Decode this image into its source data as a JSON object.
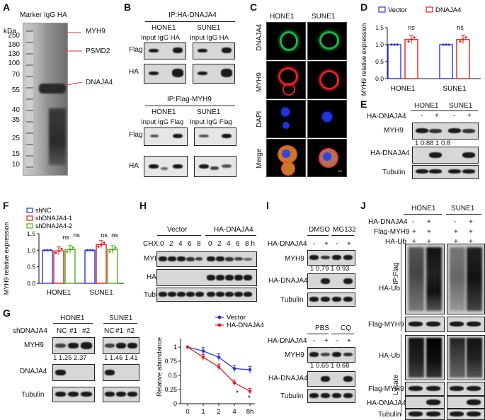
{
  "panels": {
    "A": "A",
    "B": "B",
    "C": "C",
    "D": "D",
    "E": "E",
    "F": "F",
    "G": "G",
    "H": "H",
    "I": "I",
    "J": "J"
  },
  "A": {
    "header": [
      "Marker",
      "IgG",
      "HA"
    ],
    "kda_label": "kDa",
    "kda": [
      "250",
      "180",
      "130",
      "100",
      "70",
      "55",
      "40",
      "35",
      "25",
      "15",
      "10"
    ],
    "annotations": [
      "MYH9",
      "PSMD2",
      "DNAJA4"
    ]
  },
  "B": {
    "top_title": "IP:HA-DNAJA4",
    "cells": [
      "HONE1",
      "SUNE1"
    ],
    "top_lanes": "Input IgG HA",
    "top_rows": [
      "Flag",
      "HA"
    ],
    "bottom_title": "IP:Flag-MYH9",
    "bottom_lanes": "Input IgG Flag",
    "bottom_rows": [
      "Flag",
      "HA"
    ]
  },
  "C": {
    "cols": [
      "HONE1",
      "SUNE1"
    ],
    "rows": [
      "DNAJA4",
      "MYH9",
      "DAPI",
      "Merge"
    ]
  },
  "D": {
    "legend": [
      "Vector",
      "DNAJA4"
    ],
    "ylabel": "MYH9 relative expression",
    "yticks": [
      "0.0",
      "0.5",
      "1.0",
      "1.5"
    ],
    "groups": [
      "HONE1",
      "SUNE1"
    ],
    "ns": [
      "ns",
      "ns"
    ]
  },
  "E": {
    "cells": [
      "HONE1",
      "SUNE1"
    ],
    "treat_label": "HA-DNAJA4",
    "signs": [
      "-",
      "+",
      "-",
      "+"
    ],
    "rows": [
      "MYH9",
      "HA-DNAJA4",
      "Tubulin"
    ],
    "quant": "1  0.88  1  0.8"
  },
  "F": {
    "legend": [
      "shNC",
      "shDNAJA4-1",
      "shDNAJA4-2"
    ],
    "ylabel": "MYH9 relative expression",
    "yticks": [
      "0.0",
      "0.5",
      "1.0",
      "1.5"
    ],
    "groups": [
      "HONE1",
      "SUNE1"
    ],
    "ns": [
      "ns",
      "ns",
      "ns",
      "ns"
    ]
  },
  "G": {
    "cells": [
      "HONE1",
      "SUNE1"
    ],
    "treat_label": "shDNAJA4",
    "lanes": [
      "NC",
      "#1",
      "#2",
      "NC",
      "#1",
      "#2"
    ],
    "rows": [
      "MYH9",
      "DNAJA4",
      "Tubulin"
    ],
    "quant_hone": "1 1.25 2.37",
    "quant_sune": "1 1.46 1.41"
  },
  "G_chart": {
    "ylabel": "Relative abundance",
    "yticks": [
      "0",
      "0.25",
      "0.5",
      "0.75",
      "1"
    ],
    "xticks": [
      "0",
      "1",
      "2",
      "4",
      "8h"
    ],
    "stars": [
      "*",
      "*"
    ]
  },
  "H": {
    "groups": [
      "Vector",
      "HA-DNAJA4"
    ],
    "chx_label": "CHX:",
    "lanes": [
      "0",
      "2",
      "4",
      "6",
      "8",
      "0",
      "2",
      "4",
      "6",
      "8 h"
    ],
    "rows": [
      "MYH9",
      "HA",
      "Tubulin"
    ]
  },
  "I_top": {
    "treatments": [
      "DMSO",
      "MG132"
    ],
    "treat_label": "HA-DNAJA4",
    "signs": [
      "-",
      "+",
      "-",
      "+"
    ],
    "rows": [
      "MYH9",
      "HA-DNAJA4",
      "Tubulin"
    ],
    "quant": "1 0.79 1 0.93"
  },
  "I_bottom": {
    "treatments": [
      "PBS",
      "CQ"
    ],
    "treat_label": "HA-DNAJA4",
    "signs": [
      "-",
      "+",
      "-",
      "+"
    ],
    "rows": [
      "MYH9",
      "HA-DNAJA4",
      "Tubulin"
    ],
    "quant": "1 0.65 1 0.68"
  },
  "J": {
    "cells": [
      "HONE1",
      "SUNE1"
    ],
    "treat_labels": [
      "HA-DNAJA4",
      "Flag-MYH9",
      "HA-Ub"
    ],
    "signs_row1": [
      "-",
      "+",
      "-",
      "+"
    ],
    "signs_row2": [
      "+",
      "+",
      "+",
      "+"
    ],
    "signs_row3": [
      "+",
      "+",
      "+",
      "+"
    ],
    "section_ip": "IP:Flag",
    "section_lysate": "Lysate",
    "ip_rows": [
      "HA-Ub",
      "Flag-MYH9"
    ],
    "lysate_rows": [
      "HA-Ub",
      "Flag-MYH9",
      "HA-DNAJA4",
      "Tubulin"
    ]
  },
  "chart_data": [
    {
      "type": "bar",
      "panel": "D",
      "ylabel": "MYH9 relative expression",
      "categories": [
        "HONE1",
        "SUNE1"
      ],
      "ylim": [
        0,
        1.5
      ],
      "series": [
        {
          "name": "Vector",
          "values": [
            1.0,
            1.0
          ],
          "color": "#2b36d9"
        },
        {
          "name": "DNAJA4",
          "values": [
            1.15,
            1.15
          ],
          "color": "#e02020"
        }
      ]
    },
    {
      "type": "bar",
      "panel": "F",
      "ylabel": "MYH9 relative expression",
      "categories": [
        "HONE1",
        "SUNE1"
      ],
      "ylim": [
        0,
        1.5
      ],
      "series": [
        {
          "name": "shNC",
          "values": [
            1.0,
            1.0
          ],
          "color": "#2b36d9"
        },
        {
          "name": "shDNAJA4-1",
          "values": [
            0.98,
            1.17
          ],
          "color": "#e02020"
        },
        {
          "name": "shDNAJA4-2",
          "values": [
            1.02,
            1.02
          ],
          "color": "#4caf20"
        }
      ]
    },
    {
      "type": "line",
      "panel": "G",
      "ylabel": "Relative abundance",
      "x": [
        0,
        1,
        2,
        4,
        8
      ],
      "ylim": [
        0,
        1.1
      ],
      "series": [
        {
          "name": "Vector",
          "values": [
            1.0,
            0.93,
            0.82,
            0.62,
            0.6
          ],
          "color": "#2b36d9"
        },
        {
          "name": "HA-DNAJA4",
          "values": [
            1.0,
            0.82,
            0.65,
            0.37,
            0.22
          ],
          "color": "#e02020"
        }
      ]
    }
  ]
}
